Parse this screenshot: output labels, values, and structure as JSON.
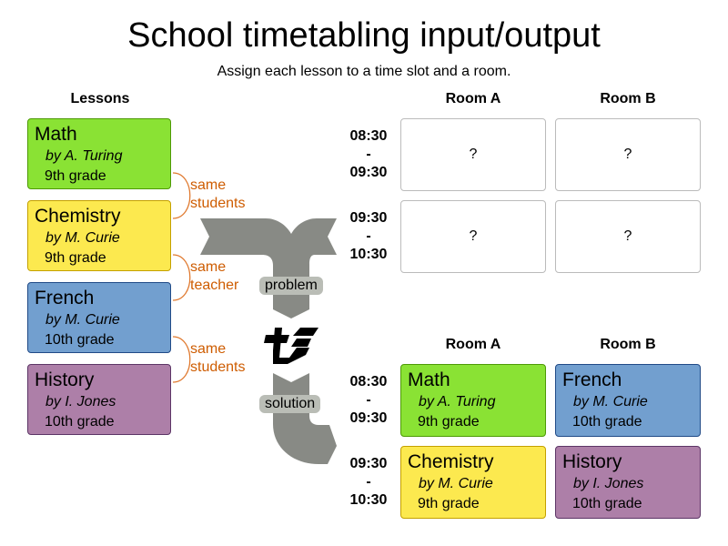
{
  "title": "School timetabling input/output",
  "subtitle": "Assign each lesson to a time slot and a room.",
  "lessons_header": "Lessons",
  "colors": {
    "math": "#8ae234",
    "chemistry": "#fce94f",
    "french": "#729fcf",
    "history": "#ad7fa8",
    "relation": "#ce5c00",
    "arrow": "#888a85"
  },
  "lessons": [
    {
      "subject": "Math",
      "teacher": "by  A. Turing",
      "grade": "9th grade"
    },
    {
      "subject": "Chemistry",
      "teacher": "by  M. Curie",
      "grade": "9th grade"
    },
    {
      "subject": "French",
      "teacher": "by  M. Curie",
      "grade": "10th grade"
    },
    {
      "subject": "History",
      "teacher": "by  I. Jones",
      "grade": "10th grade"
    }
  ],
  "relations": [
    {
      "line1": "same",
      "line2": "students"
    },
    {
      "line1": "same",
      "line2": "teacher"
    },
    {
      "line1": "same",
      "line2": "students"
    }
  ],
  "rooms": [
    "Room A",
    "Room B"
  ],
  "timeslots": [
    {
      "start": "08:30",
      "sep": "-",
      "end": "09:30"
    },
    {
      "start": "09:30",
      "sep": "-",
      "end": "10:30"
    }
  ],
  "unassigned": "?",
  "problem_label": "problem",
  "solution_label": "solution"
}
